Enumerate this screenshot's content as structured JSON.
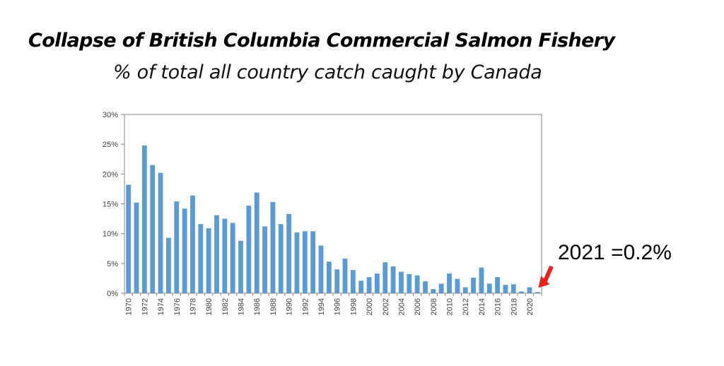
{
  "header": {
    "title": "Collapse of British Columbia Commercial Salmon Fishery",
    "subtitle": "% of total all country catch caught by Canada"
  },
  "colors": {
    "bar": "#5b9bd5",
    "arrow": "#e8231c",
    "frame": "#888888"
  },
  "chart_data": {
    "type": "bar",
    "title": "Collapse of British Columbia Commercial Salmon Fishery",
    "subtitle": "% of total all country catch caught by Canada",
    "xlabel": "",
    "ylabel": "",
    "ylim": [
      0,
      30
    ],
    "y_ticks": [
      "0%",
      "5%",
      "10%",
      "15%",
      "20%",
      "25%",
      "30%"
    ],
    "x_tick_labels": [
      "1970",
      "1972",
      "1974",
      "1976",
      "1978",
      "1980",
      "1982",
      "1984",
      "1986",
      "1988",
      "1990",
      "1992",
      "1994",
      "1996",
      "1998",
      "2000",
      "2002",
      "2004",
      "2006",
      "2008",
      "2010",
      "2012",
      "2014",
      "2016",
      "2018",
      "2020"
    ],
    "grid": false,
    "categories": [
      "1970",
      "1971",
      "1972",
      "1973",
      "1974",
      "1975",
      "1976",
      "1977",
      "1978",
      "1979",
      "1980",
      "1981",
      "1982",
      "1983",
      "1984",
      "1985",
      "1986",
      "1987",
      "1988",
      "1989",
      "1990",
      "1991",
      "1992",
      "1993",
      "1994",
      "1995",
      "1996",
      "1997",
      "1998",
      "1999",
      "2000",
      "2001",
      "2002",
      "2003",
      "2004",
      "2005",
      "2006",
      "2007",
      "2008",
      "2009",
      "2010",
      "2011",
      "2012",
      "2013",
      "2014",
      "2015",
      "2016",
      "2017",
      "2018",
      "2019",
      "2020",
      "2021"
    ],
    "values": [
      18.2,
      15.2,
      24.8,
      21.5,
      20.2,
      9.3,
      15.4,
      14.2,
      16.4,
      11.6,
      10.9,
      13.1,
      12.5,
      11.8,
      8.8,
      14.7,
      16.9,
      11.2,
      15.3,
      11.6,
      13.3,
      10.2,
      10.4,
      10.4,
      8.0,
      5.3,
      4.0,
      5.8,
      3.9,
      2.1,
      2.7,
      3.3,
      5.2,
      4.5,
      3.6,
      3.2,
      3.0,
      2.0,
      0.7,
      1.6,
      3.3,
      2.4,
      1.0,
      2.6,
      4.3,
      1.6,
      2.7,
      1.4,
      1.5,
      0.3,
      1.0,
      0.2
    ],
    "annotations": [
      {
        "text": "2021 =0.2%",
        "target": "2021"
      }
    ]
  }
}
